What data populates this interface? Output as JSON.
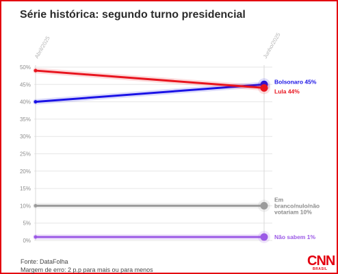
{
  "title": "Série histórica: segundo turno presidencial",
  "source": "Fonte: DataFolha",
  "margin_note": "Margem de erro: 2 p.p para mais ou para menos",
  "brand": {
    "logo": "CNN",
    "sublogo": "BRASIL"
  },
  "chart_data": {
    "type": "line",
    "x": [
      "Abril/2025",
      "Junho/2025"
    ],
    "y_ticks": [
      "0%",
      "5%",
      "10%",
      "15%",
      "20%",
      "25%",
      "30%",
      "35%",
      "40%",
      "45%",
      "50%"
    ],
    "ylim": [
      0,
      50
    ],
    "series": [
      {
        "name": "Bolsonaro 45%",
        "values": [
          40,
          45
        ],
        "color": "#1a12e6"
      },
      {
        "name": "Lula 44%",
        "values": [
          49,
          44
        ],
        "color": "#e8141e"
      },
      {
        "name": "Em branco/nulo/não votariam 10%",
        "label_lines": [
          "Em",
          "branco/nulo/não",
          "votariam 10%"
        ],
        "values": [
          10,
          10
        ],
        "color": "#9b9b9b"
      },
      {
        "name": "Não sabem 1%",
        "values": [
          1,
          1
        ],
        "color": "#9b59e6"
      }
    ]
  }
}
